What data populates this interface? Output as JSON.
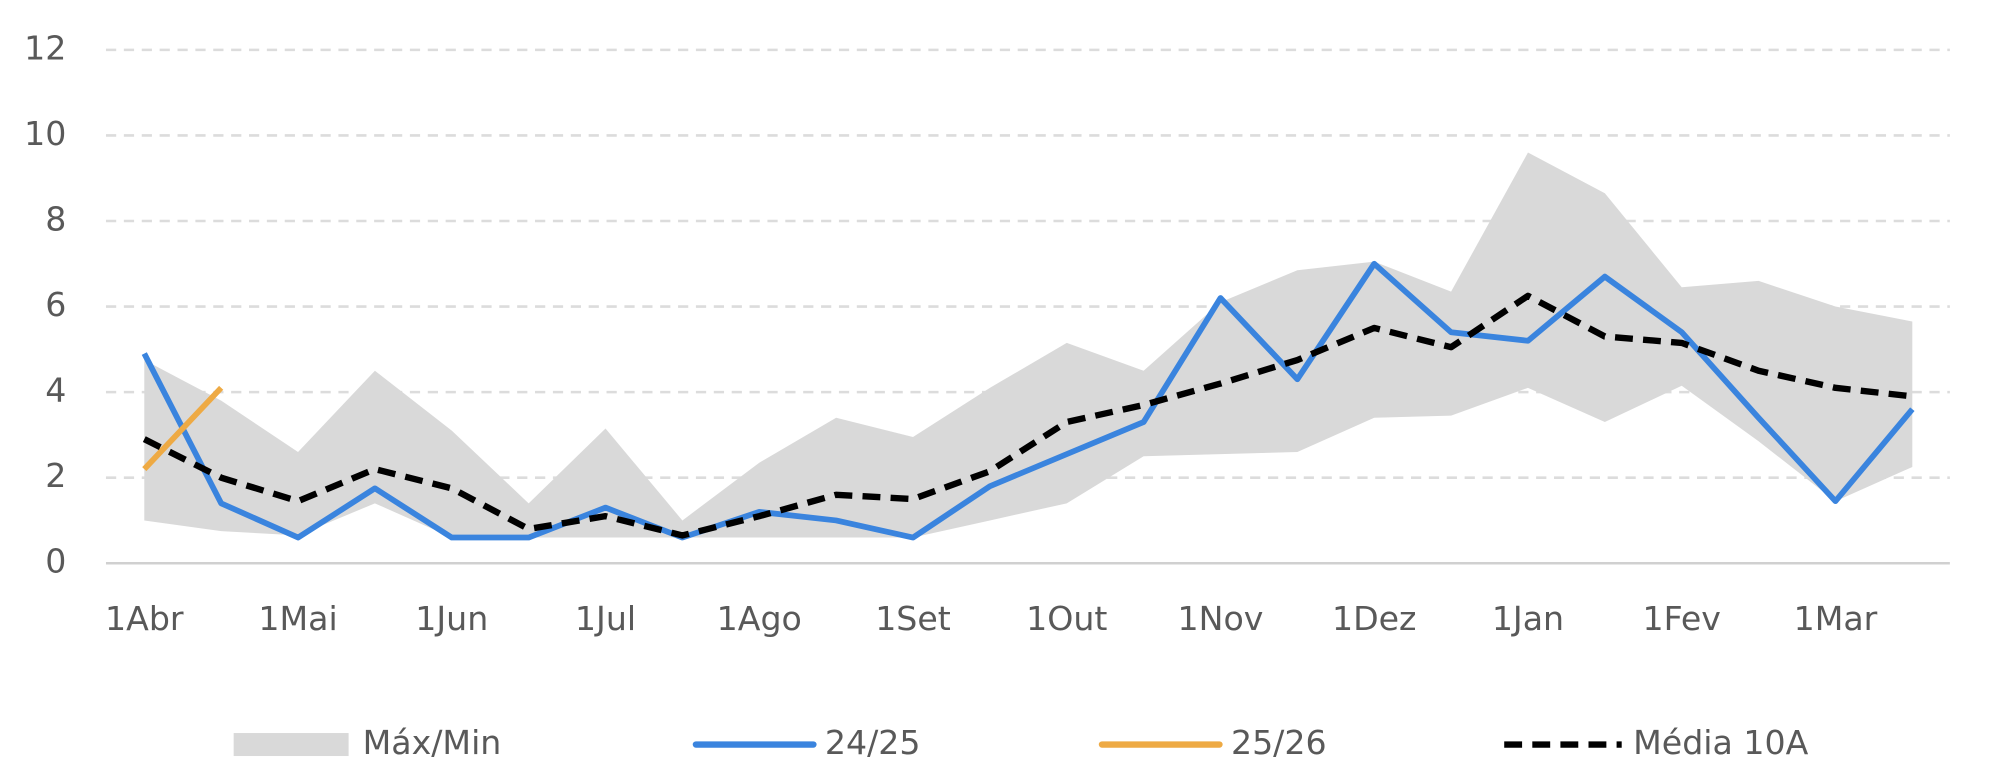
{
  "chart_data": {
    "type": "line",
    "categories": [
      "1Abr",
      null,
      "1Mai",
      null,
      "1Jun",
      null,
      "1Jul",
      null,
      "1Ago",
      null,
      "1Set",
      null,
      "1Out",
      null,
      "1Nov",
      null,
      "1Dez",
      null,
      "1Jan",
      null,
      "1Fev",
      null,
      "1Mar",
      null
    ],
    "ylim": [
      0,
      12
    ],
    "yticks": [
      0,
      2,
      4,
      6,
      8,
      10,
      12
    ],
    "grid": true,
    "legend": "bottom",
    "series": [
      {
        "name": "Máx/Min",
        "color": "#d9d9d9",
        "kind": "band",
        "upper": [
          4.75,
          3.8,
          2.6,
          4.5,
          3.1,
          1.4,
          3.15,
          1.0,
          2.35,
          3.4,
          2.95,
          4.1,
          5.15,
          4.5,
          6.1,
          6.85,
          7.05,
          6.35,
          9.6,
          8.65,
          6.45,
          6.6,
          6.0,
          5.65
        ],
        "lower": [
          1.0,
          0.75,
          0.65,
          1.4,
          0.6,
          0.6,
          0.6,
          0.6,
          0.6,
          0.6,
          0.6,
          1.0,
          1.4,
          2.5,
          2.55,
          2.6,
          3.4,
          3.45,
          4.1,
          3.3,
          4.15,
          2.85,
          1.45,
          2.25
        ]
      },
      {
        "name": "24/25",
        "color": "#3a84de",
        "kind": "solid",
        "values": [
          4.9,
          1.4,
          0.6,
          1.75,
          0.6,
          0.6,
          1.3,
          0.6,
          1.2,
          1.0,
          0.6,
          1.8,
          2.55,
          3.3,
          6.2,
          4.3,
          7.0,
          5.4,
          5.2,
          6.7,
          5.4,
          3.4,
          1.45,
          3.6
        ]
      },
      {
        "name": "25/26",
        "color": "#eeaa44",
        "kind": "solid",
        "values": [
          2.2,
          4.1,
          null,
          null,
          null,
          null,
          null,
          null,
          null,
          null,
          null,
          null,
          null,
          null,
          null,
          null,
          null,
          null,
          null,
          null,
          null,
          null,
          null,
          null
        ]
      },
      {
        "name": "Média 10A",
        "color": "#000000",
        "kind": "dashed",
        "values": [
          2.9,
          2.0,
          1.45,
          2.2,
          1.75,
          0.8,
          1.1,
          0.65,
          1.1,
          1.6,
          1.5,
          2.15,
          3.3,
          3.7,
          4.2,
          4.75,
          5.5,
          5.05,
          6.25,
          5.3,
          5.15,
          4.5,
          4.1,
          3.9
        ]
      }
    ]
  }
}
